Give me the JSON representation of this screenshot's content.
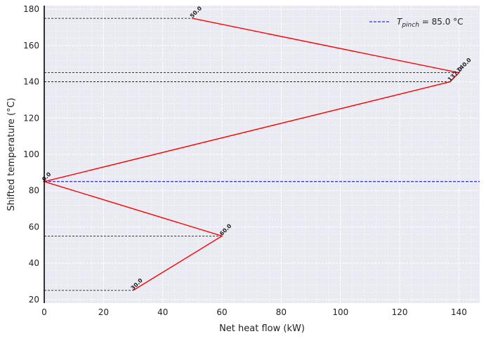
{
  "chart_data": {
    "type": "line",
    "xlabel": "Net heat flow (kW)",
    "ylabel": "Shifted temperature (°C)",
    "xlim": [
      0,
      147
    ],
    "ylim": [
      18,
      182
    ],
    "xticks": [
      0,
      20,
      40,
      60,
      80,
      100,
      120,
      140
    ],
    "yticks": [
      20,
      40,
      60,
      80,
      100,
      120,
      140,
      160,
      180
    ],
    "grid": true,
    "legend_position": "top-right",
    "series": [
      {
        "color": "#ff0000",
        "x": [
          30,
          60,
          0,
          137,
          140,
          50
        ],
        "y": [
          25,
          55,
          85,
          140,
          145,
          175
        ],
        "point_labels": [
          "30.0",
          "60.0",
          "0.0",
          "137.0",
          "140.0",
          "50.0"
        ]
      }
    ],
    "pinch": {
      "temperature": 85.0,
      "legend_label_symbol": "T",
      "legend_label_sub": "pinch",
      "legend_label_value": " = 85.0 °C",
      "color": "#0000cc"
    },
    "guide_lines_y": [
      25,
      55,
      140,
      145,
      175
    ],
    "colors": {
      "background": "#eaeaf2",
      "grid": "#ffffff",
      "guide": "#000000"
    }
  }
}
